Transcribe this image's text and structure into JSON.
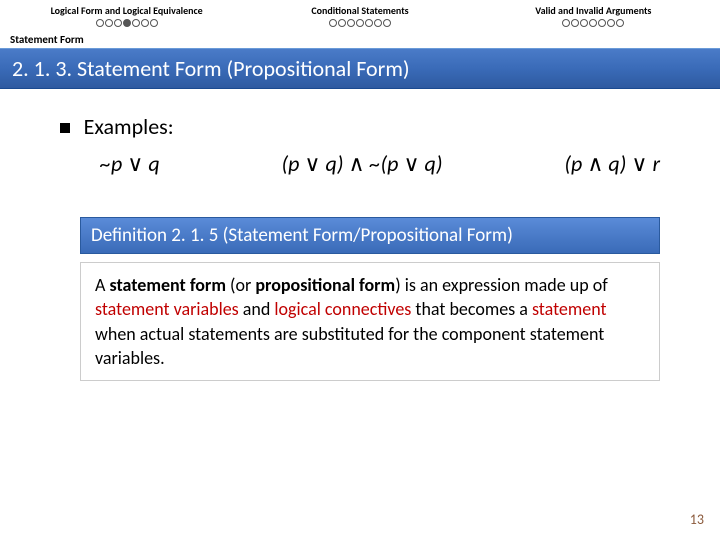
{
  "nav": {
    "items": [
      {
        "label": "Logical Form and Logical Equivalence",
        "dots": 7,
        "active": 3
      },
      {
        "label": "Conditional Statements",
        "dots": 7,
        "active": -1
      },
      {
        "label": "Valid and Invalid Arguments",
        "dots": 7,
        "active": -1
      }
    ]
  },
  "subheader": "Statement Form",
  "title": "2. 1. 3. Statement Form (Propositional Form)",
  "examples_label": "Examples:",
  "formulas": {
    "f1_p": "~p ",
    "f1_op": "∨",
    "f1_q": " q",
    "f2_a": "(p ",
    "f2_op1": "∨",
    "f2_b": " q) ",
    "f2_op2": "∧",
    "f2_c": " ~(p ",
    "f2_op3": "∨",
    "f2_d": " q)",
    "f3_a": "(p ",
    "f3_op1": "∧",
    "f3_b": " q) ",
    "f3_op2": "∨",
    "f3_c": " r"
  },
  "definition_title": "Definition 2. 1. 5 (Statement Form/Propositional Form)",
  "definition_body": {
    "t1": "A ",
    "t2": "statement form",
    "t3": " (or ",
    "t4": "propositional form",
    "t5": ") is an expression made up of ",
    "t6": "statement variables",
    "t7": " and ",
    "t8": "logical connectives",
    "t9": " that becomes a ",
    "t10": "statement",
    "t11": " when actual statements are substituted for the component statement variables."
  },
  "page_number": "13"
}
